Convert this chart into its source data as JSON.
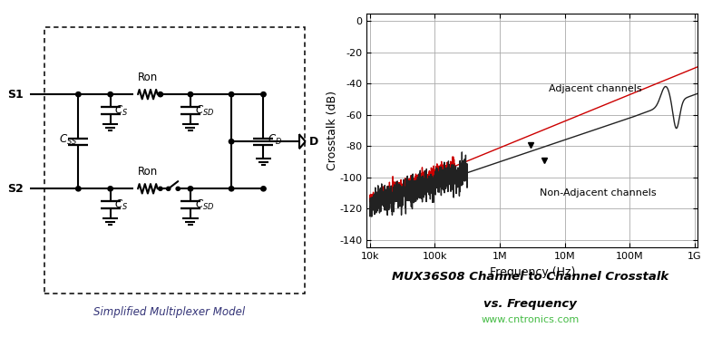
{
  "title_left": "Simplified Multiplexer Model",
  "title_right_line1": "MUX36S08 Channel to Channel Crosstalk",
  "title_right_line2": "vs. Frequency",
  "watermark": "www.cntronics.com",
  "ylabel": "Crosstalk (dB)",
  "xlabel": "Frequency (Hz)",
  "yticks": [
    0,
    -20,
    -40,
    -60,
    -80,
    -100,
    -120,
    -140
  ],
  "xtick_labels": [
    "10k",
    "100k",
    "1M",
    "10M",
    "100M",
    "1G"
  ],
  "xtick_values": [
    4,
    5,
    6,
    7,
    8,
    9
  ],
  "ylim": [
    -145,
    5
  ],
  "xlim": [
    3.95,
    9.05
  ],
  "label_adjacent": "Adjacent channels",
  "label_nonadjacent": "Non-Adjacent channels",
  "color_adjacent": "#cc0000",
  "color_nonadjacent": "#222222",
  "background_color": "#ffffff",
  "grid_color": "#aaaaaa",
  "title_color": "#333377",
  "watermark_color": "#44bb44"
}
